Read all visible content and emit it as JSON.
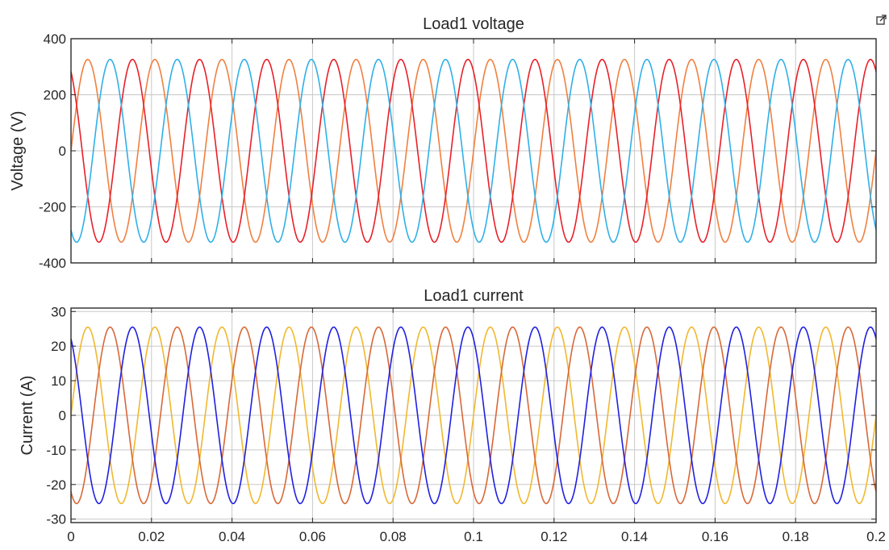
{
  "icons": {
    "corner": "export-arrow-icon"
  },
  "chart_data": [
    {
      "type": "line",
      "title": "Load1 voltage",
      "xlabel": "",
      "ylabel": "Voltage (V)",
      "xlim": [
        0,
        0.2
      ],
      "ylim": [
        -400,
        400
      ],
      "grid": true,
      "legend": "none",
      "xticks": [
        0,
        0.02,
        0.04,
        0.06,
        0.08,
        0.1,
        0.12,
        0.14,
        0.16,
        0.18,
        0.2
      ],
      "yticks": [
        -400,
        -200,
        0,
        200,
        400
      ],
      "yticklabels": [
        "-400",
        "-200",
        "0",
        "200",
        "400"
      ],
      "xtick_labels_shown": false,
      "frequency_hz": 60,
      "series": [
        {
          "color": "#f08040",
          "amplitude": 326,
          "phase_deg": 0
        },
        {
          "color": "#e8202a",
          "amplitude": 326,
          "phase_deg": 120
        },
        {
          "color": "#30b0e8",
          "amplitude": 326,
          "phase_deg": -120
        }
      ]
    },
    {
      "type": "line",
      "title": "Load1 current",
      "xlabel": "",
      "ylabel": "Current (A)",
      "xlim": [
        0,
        0.2
      ],
      "ylim": [
        -31,
        31
      ],
      "grid": true,
      "legend": "none",
      "xticks": [
        0,
        0.02,
        0.04,
        0.06,
        0.08,
        0.1,
        0.12,
        0.14,
        0.16,
        0.18,
        0.2
      ],
      "xticklabels": [
        "0",
        "0.02",
        "0.04",
        "0.06",
        "0.08",
        "0.1",
        "0.12",
        "0.14",
        "0.16",
        "0.18",
        "0.2"
      ],
      "yticks": [
        -30,
        -20,
        -10,
        0,
        10,
        20,
        30
      ],
      "yticklabels": [
        "-30",
        "-20",
        "-10",
        "0",
        "10",
        "20",
        "30"
      ],
      "xtick_labels_shown": true,
      "frequency_hz": 60,
      "series": [
        {
          "color": "#f0b830",
          "amplitude": 25.5,
          "phase_deg": 0
        },
        {
          "color": "#d86838",
          "amplitude": 25.5,
          "phase_deg": -120
        },
        {
          "color": "#2020e0",
          "amplitude": 25.5,
          "phase_deg": 120
        }
      ]
    }
  ]
}
